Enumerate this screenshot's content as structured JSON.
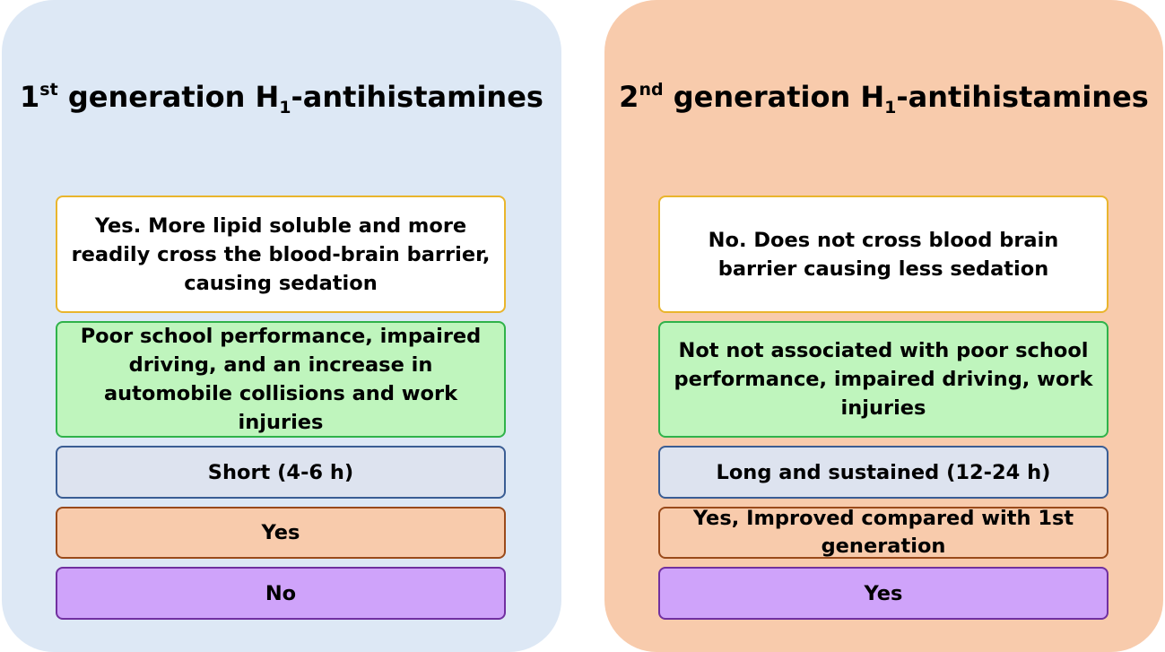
{
  "diagram": {
    "left_panel": {
      "title_prefix": "1",
      "title_sup": "st",
      "title_mid": " generation H",
      "title_sub": "1",
      "title_suffix": "-antihistamines",
      "rows": [
        "Yes. More lipid soluble and more readily cross the blood-brain barrier, causing sedation",
        "Poor school performance, impaired driving, and an increase in automobile collisions and work injuries",
        "Short (4-6 h)",
        "Yes",
        "No"
      ]
    },
    "right_panel": {
      "title_prefix": "2",
      "title_sup": "nd",
      "title_mid": " generation H",
      "title_sub": "1",
      "title_suffix": "-antihistamines",
      "rows": [
        "No. Does not cross blood brain barrier causing less sedation",
        "Not not associated with poor school performance, impaired driving, work injuries",
        "Long and sustained (12-24 h)",
        "Yes, Improved compared with 1st generation",
        "Yes"
      ]
    },
    "colors": {
      "left_panel_bg": "#dde8f5",
      "right_panel_bg": "#f8cbac",
      "row1_bg": "#ffffff",
      "row1_border": "#e9b52d",
      "row2_bg": "#bff5bd",
      "row2_border": "#2fb24a",
      "row3_bg": "#dde3ef",
      "row3_border": "#3a5d94",
      "row4_bg": "#f8cbac",
      "row4_border": "#9a4a1a",
      "row5_bg": "#cfa3fa",
      "row5_border": "#7130a0"
    }
  }
}
